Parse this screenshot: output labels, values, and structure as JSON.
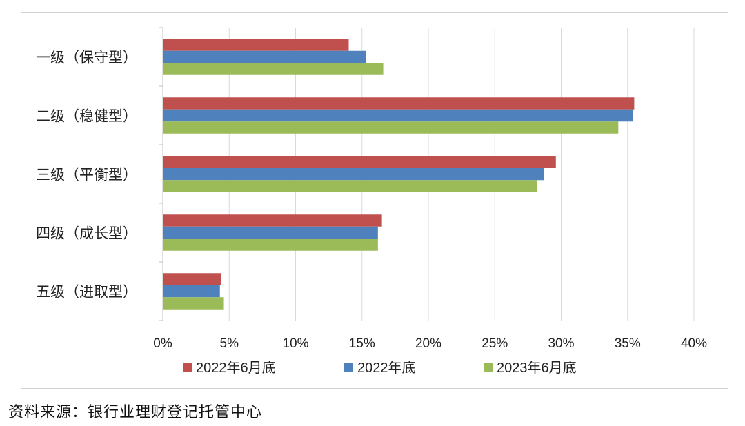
{
  "chart_data": {
    "type": "bar",
    "orientation": "horizontal",
    "categories": [
      "一级（保守型）",
      "二级（稳健型）",
      "三级（平衡型）",
      "四级（成长型）",
      "五级（进取型）"
    ],
    "series": [
      {
        "name": "2022年6月底",
        "color": "#c0504d",
        "values": [
          14.0,
          35.5,
          29.6,
          16.5,
          4.4
        ]
      },
      {
        "name": "2022年底",
        "color": "#4f81bd",
        "values": [
          15.3,
          35.4,
          28.7,
          16.2,
          4.3
        ]
      },
      {
        "name": "2023年6月底",
        "color": "#9bbb59",
        "values": [
          16.6,
          34.3,
          28.2,
          16.2,
          4.6
        ]
      }
    ],
    "xlim": [
      0,
      40
    ],
    "xticks": [
      0,
      5,
      10,
      15,
      20,
      25,
      30,
      35,
      40
    ],
    "tick_labels": [
      "0%",
      "5%",
      "10%",
      "15%",
      "20%",
      "25%",
      "30%",
      "35%",
      "40%"
    ],
    "grid": true,
    "legend_position": "bottom",
    "title": "",
    "xlabel": "",
    "ylabel": ""
  },
  "source_note": "资料来源：银行业理财登记托管中心"
}
